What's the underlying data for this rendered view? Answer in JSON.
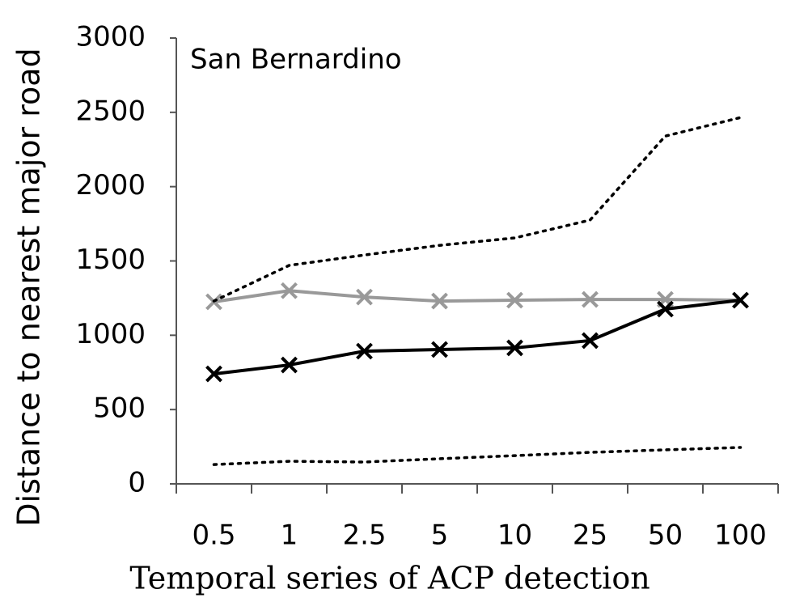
{
  "chart_data": {
    "type": "line",
    "title": "San Bernardino",
    "xlabel": "Temporal series of ACP detection",
    "ylabel": "Distance to nearest major road",
    "categories": [
      "0.5",
      "1",
      "2.5",
      "5",
      "10",
      "25",
      "50",
      "100"
    ],
    "series": [
      {
        "color": "#999999",
        "style": "solid",
        "marker": "x",
        "values": [
          1225,
          1300,
          1257,
          1230,
          1236,
          1241,
          1241,
          1236
        ]
      },
      {
        "color": "#000000",
        "style": "solid",
        "marker": "x",
        "values": [
          740,
          800,
          893,
          904,
          915,
          964,
          1176,
          1236
        ]
      },
      {
        "color": "#000000",
        "style": "dotted",
        "values": [
          1230,
          1470,
          1540,
          1605,
          1655,
          1775,
          2340,
          2465
        ]
      },
      {
        "color": "#000000",
        "style": "dotted",
        "values": [
          130,
          152,
          147,
          169,
          190,
          212,
          229,
          245
        ]
      }
    ],
    "ylim": [
      0,
      3000
    ],
    "yticks": [
      0,
      500,
      1000,
      1500,
      2000,
      2500,
      3000
    ]
  }
}
